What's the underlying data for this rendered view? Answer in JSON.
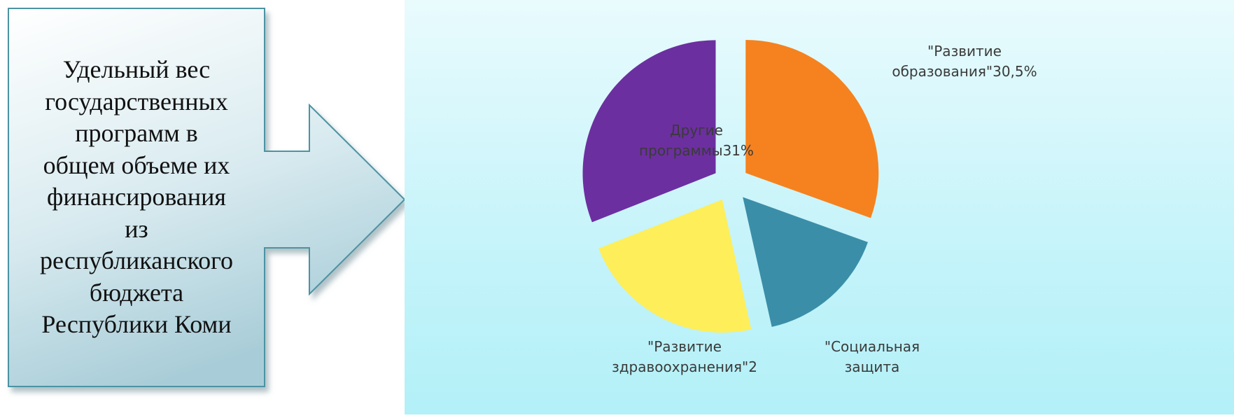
{
  "callout": {
    "text_lines": [
      "Удельный вес",
      "государственных",
      "программ в",
      "общем объеме их",
      "финансирования",
      "из",
      "республиканского",
      "бюджета",
      "Республики Коми"
    ]
  },
  "colors": {
    "panel_background": "#c7f4fa",
    "callout_border": "#4b93a3",
    "callout_fill_top": "#ffffff",
    "callout_fill_bottom": "#a9cdd8"
  },
  "chart_data": {
    "type": "pie",
    "exploded": true,
    "slices": [
      {
        "label_lines": [
          "\"Развитие",
          "образования\"30,5%"
        ],
        "value": 30.5,
        "color": "#f5821f"
      },
      {
        "label_lines": [
          "\"Социальная",
          "защита"
        ],
        "value": 16,
        "color": "#3a8ea8"
      },
      {
        "label_lines": [
          "\"Развитие",
          "здравоохранения\"2"
        ],
        "value": 22.5,
        "color": "#fdee5a"
      },
      {
        "label_lines": [
          "Другие",
          "программы31%"
        ],
        "value": 31,
        "color": "#6c2fa0"
      }
    ]
  }
}
